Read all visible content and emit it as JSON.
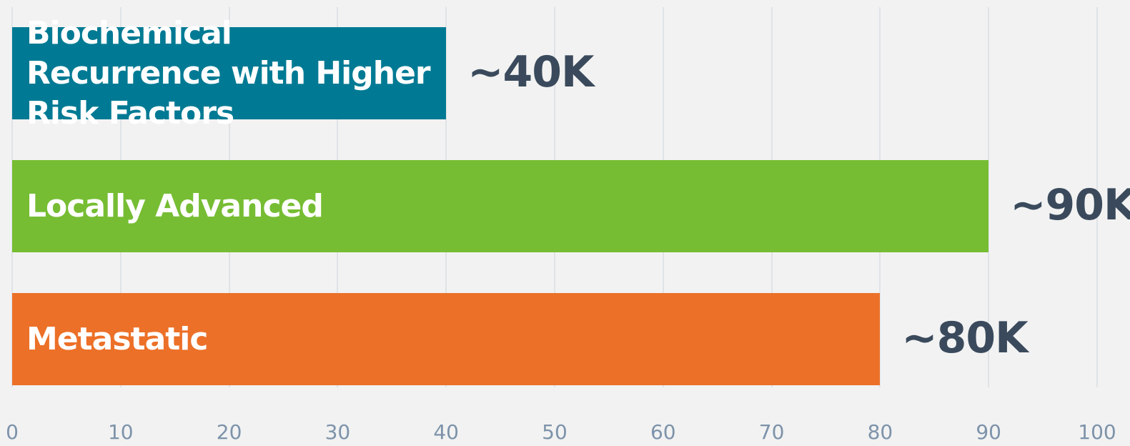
{
  "chart_data": {
    "type": "bar",
    "orientation": "horizontal",
    "categories": [
      "Biochemical Recurrence with Higher Risk Factors",
      "Locally Advanced",
      "Metastatic"
    ],
    "values": [
      40,
      90,
      80
    ],
    "value_labels": [
      "~40K",
      "~90K",
      "~80K"
    ],
    "colors": [
      "#007a94",
      "#76bd33",
      "#ec7028"
    ],
    "xlim": [
      0,
      100
    ],
    "xticks": [
      0,
      10,
      20,
      30,
      40,
      50,
      60,
      70,
      80,
      90,
      100
    ],
    "grid": true
  }
}
